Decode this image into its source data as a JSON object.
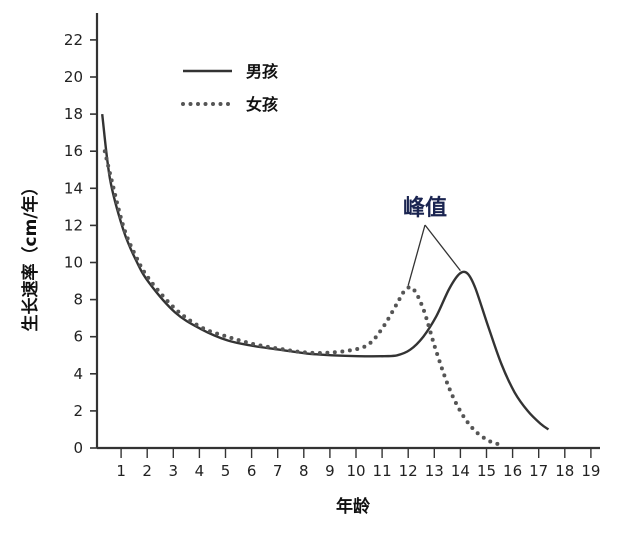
{
  "chart_data": {
    "type": "line",
    "xlabel": "年龄",
    "ylabel": "生长速率（cm/年）",
    "xlim": [
      0,
      19
    ],
    "ylim": [
      0,
      24
    ],
    "x_ticks": [
      1,
      2,
      3,
      4,
      5,
      6,
      7,
      8,
      9,
      10,
      11,
      12,
      13,
      14,
      15,
      16,
      17,
      18,
      19
    ],
    "y_ticks": [
      0,
      2,
      4,
      6,
      8,
      10,
      12,
      14,
      16,
      18,
      20,
      22
    ],
    "grid": false,
    "legend_position": "top-left",
    "series": [
      {
        "name": "男孩",
        "style": "solid",
        "color": "#333333",
        "points": [
          [
            0.2,
            18.0
          ],
          [
            0.5,
            14.5
          ],
          [
            1.0,
            11.8
          ],
          [
            1.5,
            10.1
          ],
          [
            2.0,
            8.9
          ],
          [
            3.0,
            7.3
          ],
          [
            4.0,
            6.4
          ],
          [
            5.0,
            5.8
          ],
          [
            6.0,
            5.5
          ],
          [
            7.0,
            5.3
          ],
          [
            8.0,
            5.1
          ],
          [
            9.0,
            5.0
          ],
          [
            10.0,
            4.95
          ],
          [
            11.0,
            4.95
          ],
          [
            11.5,
            5.0
          ],
          [
            12.0,
            5.3
          ],
          [
            12.5,
            6.0
          ],
          [
            13.0,
            7.1
          ],
          [
            13.5,
            8.6
          ],
          [
            13.9,
            9.4
          ],
          [
            14.2,
            9.4
          ],
          [
            14.5,
            8.6
          ],
          [
            15.0,
            6.5
          ],
          [
            15.5,
            4.5
          ],
          [
            16.0,
            3.0
          ],
          [
            16.5,
            2.0
          ],
          [
            17.0,
            1.3
          ],
          [
            17.3,
            1.0
          ]
        ]
      },
      {
        "name": "女孩",
        "style": "dotted",
        "color": "#555555",
        "points": [
          [
            0.3,
            16.0
          ],
          [
            0.5,
            14.8
          ],
          [
            1.0,
            12.0
          ],
          [
            1.5,
            10.3
          ],
          [
            2.0,
            9.1
          ],
          [
            3.0,
            7.5
          ],
          [
            4.0,
            6.5
          ],
          [
            5.0,
            6.0
          ],
          [
            6.0,
            5.6
          ],
          [
            7.0,
            5.35
          ],
          [
            8.0,
            5.15
          ],
          [
            9.0,
            5.15
          ],
          [
            10.0,
            5.35
          ],
          [
            10.5,
            5.7
          ],
          [
            11.0,
            6.6
          ],
          [
            11.5,
            7.8
          ],
          [
            11.8,
            8.5
          ],
          [
            12.1,
            8.6
          ],
          [
            12.5,
            7.5
          ],
          [
            13.0,
            5.2
          ],
          [
            13.5,
            3.2
          ],
          [
            14.0,
            1.8
          ],
          [
            14.5,
            0.9
          ],
          [
            15.0,
            0.4
          ],
          [
            15.4,
            0.2
          ]
        ]
      }
    ],
    "annotation": {
      "text": "峰值",
      "targets": [
        [
          12.0,
          8.6
        ],
        [
          14.0,
          9.4
        ]
      ]
    }
  }
}
